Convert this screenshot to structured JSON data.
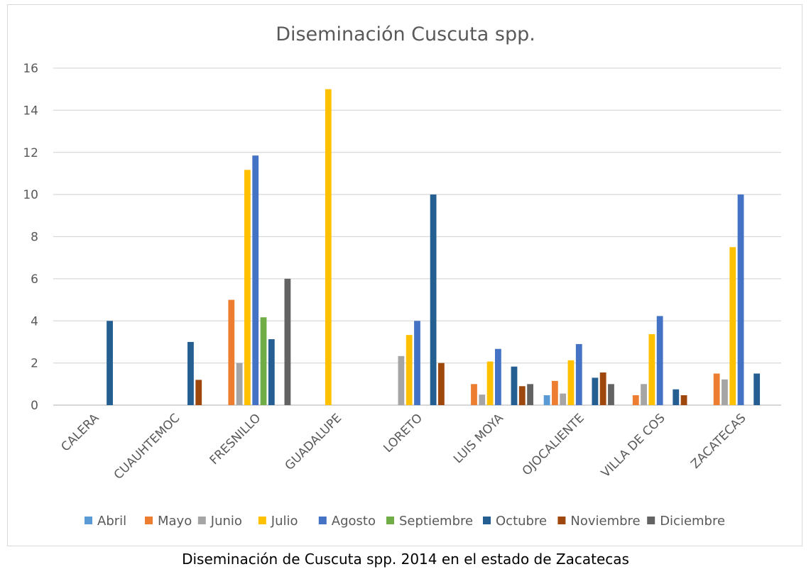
{
  "caption": "Diseminación de Cuscuta spp. 2014 en el estado de Zacatecas",
  "chart_data": {
    "type": "bar",
    "title": "Diseminación Cuscuta spp.",
    "xlabel": "",
    "ylabel": "",
    "ylim": [
      0,
      16
    ],
    "yticks": [
      0,
      2,
      4,
      6,
      8,
      10,
      12,
      14,
      16
    ],
    "grid": true,
    "legend_position": "bottom",
    "categories": [
      "CALERA",
      "CUAUHTEMOC",
      "FRESNILLO",
      "GUADALUPE",
      "LORETO",
      "LUIS MOYA",
      "OJOCALIENTE",
      "VILLA DE COS",
      "ZACATECAS"
    ],
    "series": [
      {
        "name": "Abril",
        "color": "#5b9bd5",
        "values": [
          0,
          0,
          0,
          0,
          0,
          0,
          0.47,
          0,
          0
        ]
      },
      {
        "name": "Mayo",
        "color": "#ed7d31",
        "values": [
          0,
          0,
          5,
          0,
          0,
          1,
          1.15,
          0.47,
          1.5
        ]
      },
      {
        "name": "Junio",
        "color": "#a5a5a5",
        "values": [
          0,
          0,
          2,
          0,
          2.33,
          0.5,
          0.55,
          1,
          1.22
        ]
      },
      {
        "name": "Julio",
        "color": "#ffc000",
        "values": [
          0,
          0,
          11.17,
          15,
          3.33,
          2.07,
          2.13,
          3.37,
          7.5
        ]
      },
      {
        "name": "Agosto",
        "color": "#4472c4",
        "values": [
          0,
          0,
          11.85,
          0,
          4,
          2.67,
          2.9,
          4.23,
          10
        ]
      },
      {
        "name": "Septiembre",
        "color": "#70ad47",
        "values": [
          0,
          0,
          4.17,
          0,
          0,
          0,
          0,
          0,
          0
        ]
      },
      {
        "name": "Octubre",
        "color": "#255e91",
        "values": [
          4,
          3,
          3.13,
          0,
          10,
          1.83,
          1.3,
          0.75,
          1.5
        ]
      },
      {
        "name": "Noviembre",
        "color": "#9e480e",
        "values": [
          0,
          1.2,
          0,
          0,
          2,
          0.9,
          1.55,
          0.47,
          0
        ]
      },
      {
        "name": "Diciembre",
        "color": "#636363",
        "values": [
          0,
          0,
          6,
          0,
          0,
          1,
          1,
          0,
          0
        ]
      }
    ]
  }
}
